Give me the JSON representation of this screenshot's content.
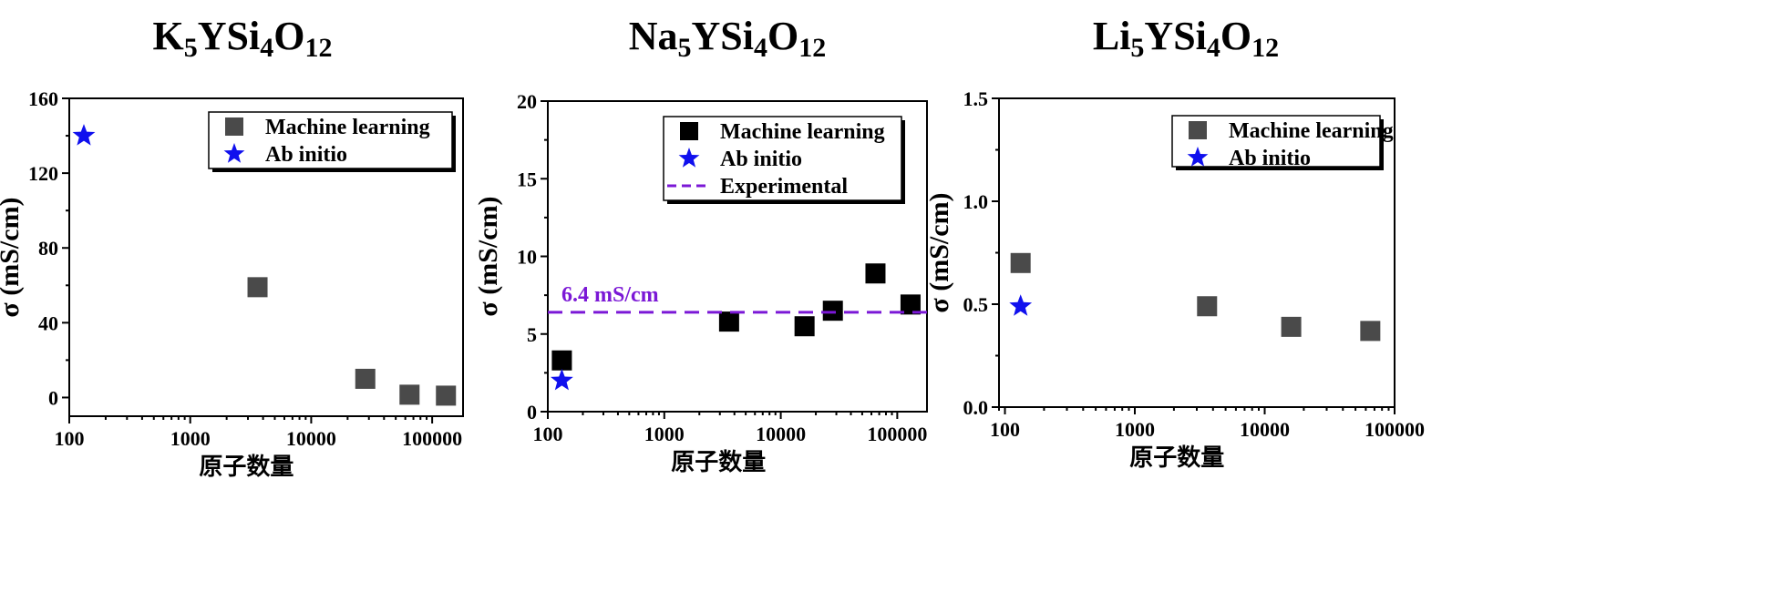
{
  "chart_data": [
    {
      "type": "scatter",
      "title": {
        "base": "K",
        "s1": "5",
        "mid1": "YSi",
        "s2": "4",
        "mid2": "O",
        "s3": "12"
      },
      "xlabel": "原子数量",
      "ylabel": "σ (mS/cm)",
      "xscale": "log",
      "xlim": [
        100,
        180000
      ],
      "ylim": [
        -10,
        160
      ],
      "xticks": [
        100,
        1000,
        10000,
        100000
      ],
      "xtick_labels": [
        "100",
        "1000",
        "10000",
        "100000"
      ],
      "yticks": [
        0,
        40,
        80,
        120,
        160
      ],
      "ytick_labels": [
        "0",
        "40",
        "80",
        "120",
        "160"
      ],
      "legend_position": "top-right",
      "series": [
        {
          "name": "Machine learning",
          "marker": "square",
          "color": "#4a4a4a",
          "points": [
            [
              3600,
              59
            ],
            [
              28000,
              10
            ],
            [
              65000,
              1.5
            ],
            [
              130000,
              1
            ]
          ]
        },
        {
          "name": "Ab initio",
          "marker": "star",
          "color": "#1010ee",
          "points": [
            [
              132,
              140
            ]
          ]
        }
      ]
    },
    {
      "type": "scatter",
      "title": {
        "base": "Na",
        "s1": "5",
        "mid1": "YSi",
        "s2": "4",
        "mid2": "O",
        "s3": "12"
      },
      "xlabel": "原子数量",
      "ylabel": "σ (mS/cm)",
      "xscale": "log",
      "xlim": [
        100,
        180000
      ],
      "ylim": [
        0,
        20
      ],
      "xticks": [
        100,
        1000,
        10000,
        100000
      ],
      "xtick_labels": [
        "100",
        "1000",
        "10000",
        "100000"
      ],
      "yticks": [
        0,
        5,
        10,
        15,
        20
      ],
      "ytick_labels": [
        "0",
        "5",
        "10",
        "15",
        "20"
      ],
      "legend_position": "top-right",
      "series": [
        {
          "name": "Machine learning",
          "marker": "square",
          "color": "#000000",
          "points": [
            [
              132,
              3.3
            ],
            [
              3600,
              5.8
            ],
            [
              16000,
              5.5
            ],
            [
              28000,
              6.5
            ],
            [
              65000,
              8.9
            ],
            [
              130000,
              6.9
            ]
          ]
        },
        {
          "name": "Ab initio",
          "marker": "star",
          "color": "#1010ee",
          "points": [
            [
              132,
              2.0
            ]
          ]
        },
        {
          "name": "Experimental",
          "marker": "dashed-line",
          "color": "#7b18d6",
          "y": 6.4
        }
      ],
      "annotations": [
        {
          "text": "6.4 mS/cm",
          "color": "#7b18d6"
        }
      ]
    },
    {
      "type": "scatter",
      "title": {
        "base": "Li",
        "s1": "5",
        "mid1": "YSi",
        "s2": "4",
        "mid2": "O",
        "s3": "12"
      },
      "xlabel": "原子数量",
      "ylabel": "σ (mS/cm)",
      "xscale": "log",
      "xlim": [
        90,
        100000
      ],
      "ylim": [
        0,
        1.5
      ],
      "xticks": [
        100,
        1000,
        10000,
        100000
      ],
      "xtick_labels": [
        "100",
        "1000",
        "10000",
        "100000"
      ],
      "yticks": [
        0,
        0.5,
        1.0,
        1.5
      ],
      "ytick_labels": [
        "0.0",
        "0.5",
        "1.0",
        "1.5"
      ],
      "legend_position": "top-right",
      "series": [
        {
          "name": "Machine learning",
          "marker": "square",
          "color": "#4a4a4a",
          "points": [
            [
              132,
              0.7
            ],
            [
              3600,
              0.49
            ],
            [
              16000,
              0.39
            ],
            [
              65000,
              0.37
            ]
          ]
        },
        {
          "name": "Ab initio",
          "marker": "star",
          "color": "#1010ee",
          "points": [
            [
              132,
              0.49
            ]
          ]
        }
      ]
    }
  ]
}
